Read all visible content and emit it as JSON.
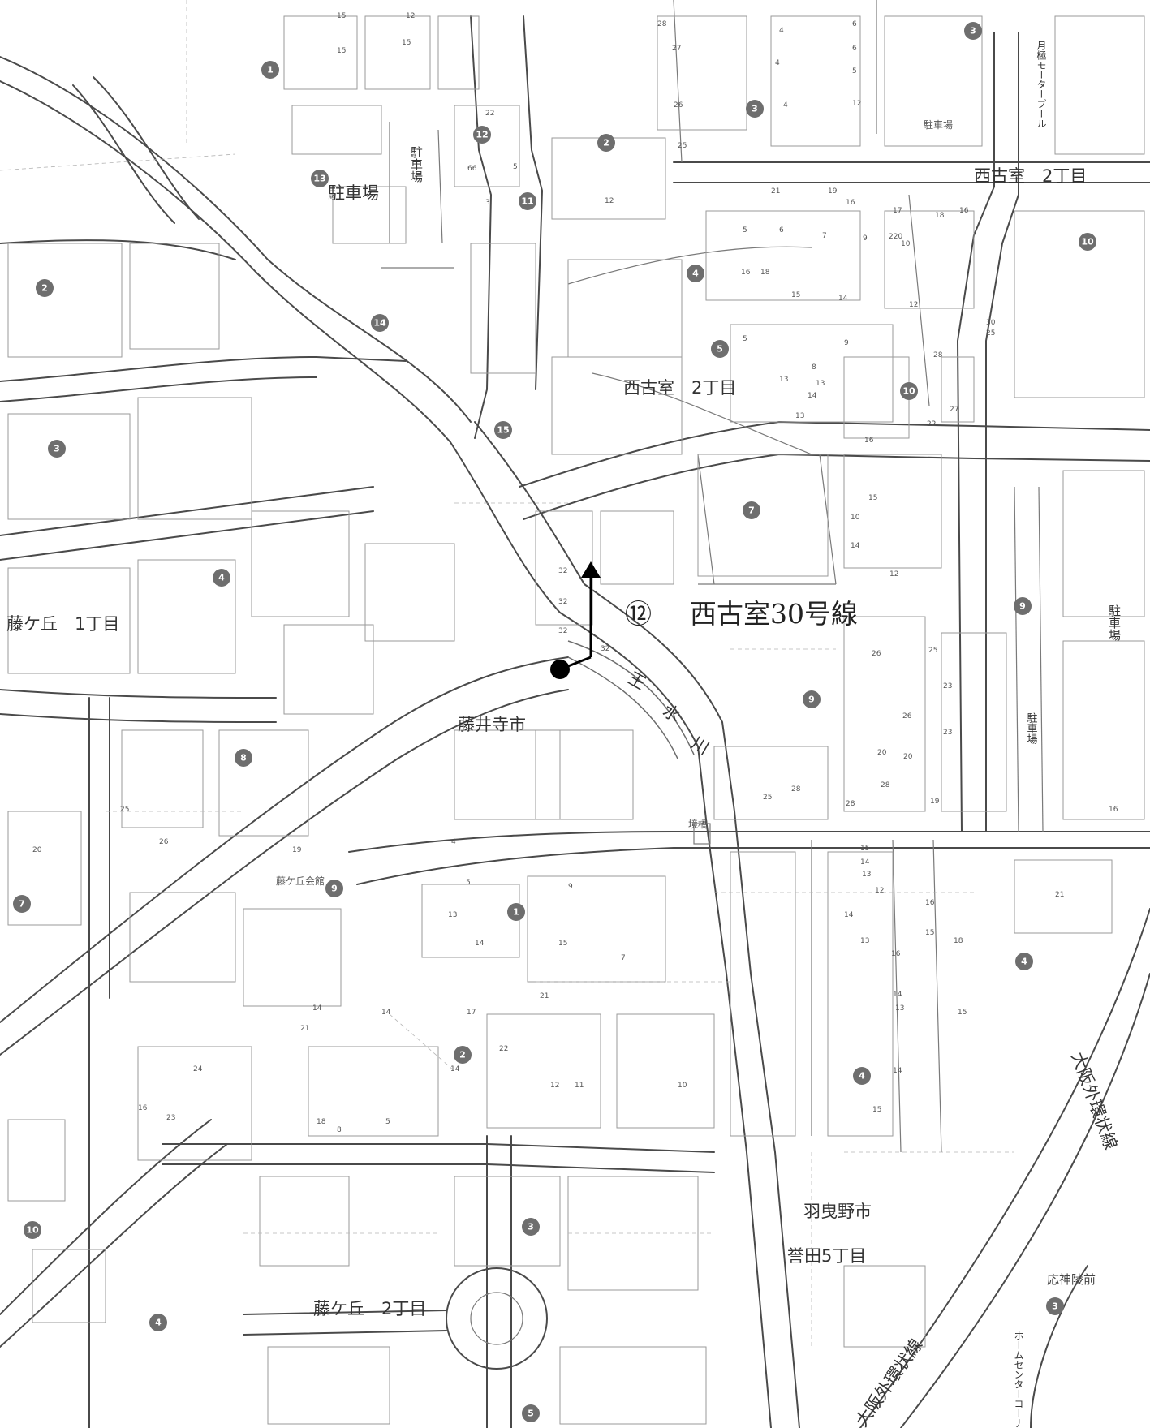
{
  "map": {
    "route_label": "西古室30号線",
    "route_number": "⑫",
    "area_labels": {
      "nishifuro_2_top": "西古室　2丁目",
      "nishifuro_2_mid": "西古室　2丁目",
      "fujigaoka_1": "藤ケ丘　1丁目",
      "fujidera_city": "藤井寺市",
      "habikino_city": "羽曳野市",
      "homuta_5": "誉田5丁目",
      "fujigaoka_2": "藤ケ丘　2丁目",
      "ojinryo_mae": "応神陵前"
    },
    "facility_labels": {
      "parking_13": "駐車場",
      "parking_small_top": "駐車場",
      "parking_vertical_1": "駐車場",
      "parking_vertical_2": "駐車場",
      "parking_vertical_3": "駐車場",
      "motor_pool": "月極モータープール",
      "fujigaoka_kaikan": "藤ケ丘会館",
      "home_center": "ホームセンターコーナン羽曳野店"
    },
    "river_chars": [
      "王",
      "水",
      "川"
    ],
    "bridge_label": "境橋",
    "highway_label_1": "大阪外環状線",
    "highway_label_2": "大阪外環状線",
    "block_badges": [
      {
        "n": "1"
      },
      {
        "n": "2"
      },
      {
        "n": "3"
      },
      {
        "n": "3"
      },
      {
        "n": "10"
      },
      {
        "n": "12"
      },
      {
        "n": "13"
      },
      {
        "n": "11"
      },
      {
        "n": "2"
      },
      {
        "n": "4"
      },
      {
        "n": "14"
      },
      {
        "n": "5"
      },
      {
        "n": "10"
      },
      {
        "n": "15"
      },
      {
        "n": "3"
      },
      {
        "n": "7"
      },
      {
        "n": "4"
      },
      {
        "n": "9"
      },
      {
        "n": "9"
      },
      {
        "n": "8"
      },
      {
        "n": "9"
      },
      {
        "n": "1"
      },
      {
        "n": "7"
      },
      {
        "n": "4"
      },
      {
        "n": "2"
      },
      {
        "n": "4"
      },
      {
        "n": "10"
      },
      {
        "n": "3"
      },
      {
        "n": "4"
      },
      {
        "n": "3"
      },
      {
        "n": "5"
      }
    ],
    "lot_numbers": [
      "15",
      "12",
      "15",
      "15",
      "28",
      "27",
      "26",
      "25",
      "4",
      "4",
      "6",
      "6",
      "5",
      "12",
      "22",
      "66",
      "5",
      "3",
      "4",
      "12",
      "21",
      "19",
      "16",
      "17",
      "18",
      "16",
      "5",
      "6",
      "7",
      "9",
      "220",
      "10",
      "16",
      "18",
      "15",
      "14",
      "12",
      "30",
      "25",
      "28",
      "27",
      "22",
      "5",
      "8",
      "9",
      "13",
      "13",
      "14",
      "13",
      "16",
      "15",
      "10",
      "14",
      "12",
      "32",
      "32",
      "32",
      "32",
      "26",
      "25",
      "23",
      "26",
      "23",
      "20",
      "20",
      "28",
      "28",
      "28",
      "25",
      "19",
      "16",
      "15",
      "14",
      "13",
      "12",
      "16",
      "15",
      "14",
      "13",
      "16",
      "18",
      "14",
      "13",
      "15",
      "14",
      "15",
      "9",
      "7",
      "5",
      "4",
      "12",
      "11",
      "10",
      "13",
      "14",
      "15",
      "21",
      "17",
      "14",
      "22",
      "21",
      "14",
      "14",
      "18",
      "16",
      "23",
      "24",
      "25",
      "26",
      "20",
      "19",
      "21",
      "5",
      "8",
      "16",
      "14",
      "13"
    ]
  }
}
